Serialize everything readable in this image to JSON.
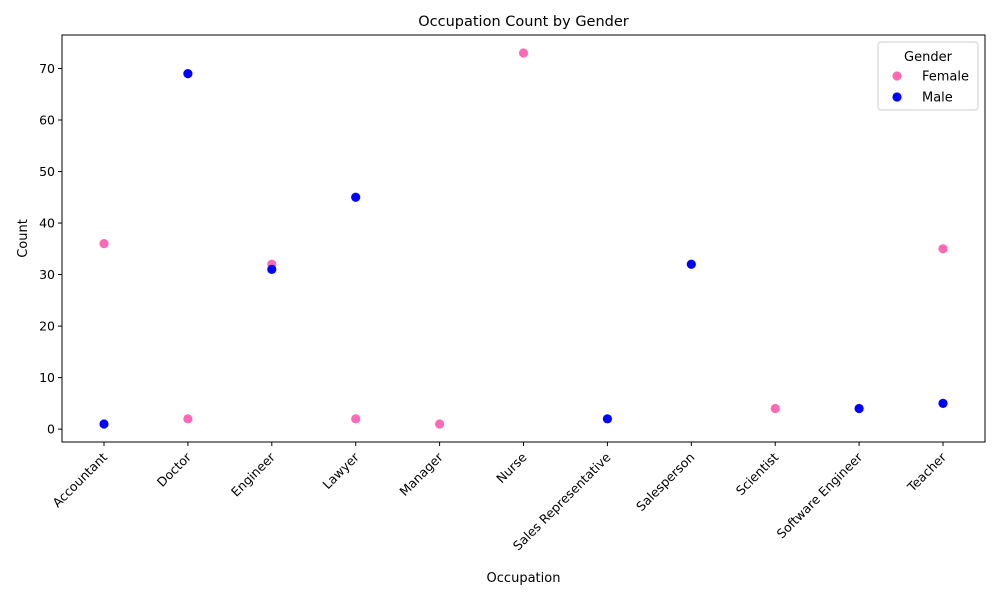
{
  "chart_data": {
    "type": "scatter",
    "title": "Occupation Count by Gender",
    "xlabel": "Occupation",
    "ylabel": "Count",
    "categories": [
      "Accountant",
      "Doctor",
      "Engineer",
      "Lawyer",
      "Manager",
      "Nurse",
      "Sales Representative",
      "Salesperson",
      "Scientist",
      "Software Engineer",
      "Teacher"
    ],
    "ylim": [
      -2.5,
      76.5
    ],
    "yticks": [
      0,
      10,
      20,
      30,
      40,
      50,
      60,
      70
    ],
    "grid": false,
    "legend": {
      "title": "Gender",
      "placement": "top-right"
    },
    "series": [
      {
        "name": "Female",
        "color": "#ff69b4",
        "points": [
          {
            "x": "Accountant",
            "y": 36
          },
          {
            "x": "Doctor",
            "y": 2
          },
          {
            "x": "Engineer",
            "y": 32
          },
          {
            "x": "Lawyer",
            "y": 2
          },
          {
            "x": "Manager",
            "y": 1
          },
          {
            "x": "Nurse",
            "y": 73
          },
          {
            "x": "Scientist",
            "y": 4
          },
          {
            "x": "Teacher",
            "y": 35
          }
        ]
      },
      {
        "name": "Male",
        "color": "#0000ff",
        "points": [
          {
            "x": "Accountant",
            "y": 1
          },
          {
            "x": "Doctor",
            "y": 69
          },
          {
            "x": "Engineer",
            "y": 31
          },
          {
            "x": "Lawyer",
            "y": 45
          },
          {
            "x": "Sales Representative",
            "y": 2
          },
          {
            "x": "Salesperson",
            "y": 32
          },
          {
            "x": "Software Engineer",
            "y": 4
          },
          {
            "x": "Teacher",
            "y": 5
          }
        ]
      }
    ]
  }
}
